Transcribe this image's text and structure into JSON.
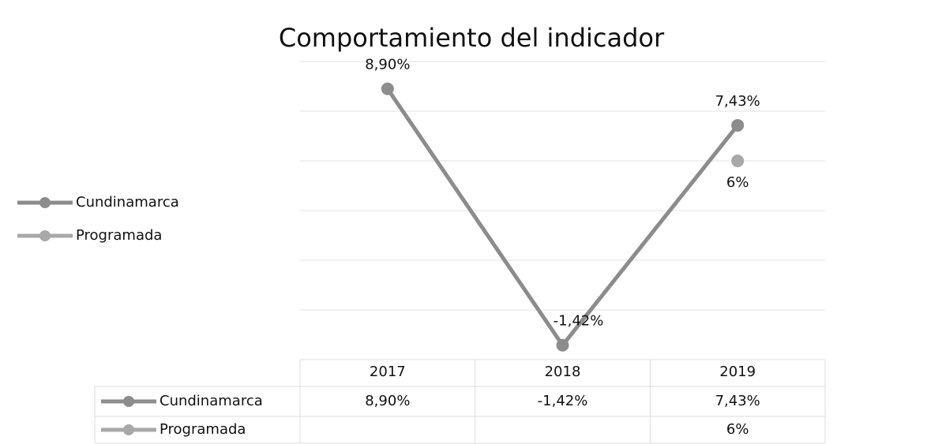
{
  "chart_data": {
    "type": "line",
    "title": "Comportamiento del indicador",
    "categories": [
      "2017",
      "2018",
      "2019"
    ],
    "series": [
      {
        "name": "Cundinamarca",
        "color": "#8c8c8c",
        "values": [
          8.9,
          -1.42,
          7.43
        ],
        "value_labels": [
          "8,90%",
          "-1,42%",
          "7,43%"
        ]
      },
      {
        "name": "Programada",
        "color": "#a8a8a8",
        "values": [
          null,
          null,
          6
        ],
        "value_labels": [
          null,
          null,
          "6%"
        ]
      }
    ],
    "ylim": [
      -2,
      10
    ],
    "yticks": [
      -2,
      0,
      2,
      4,
      6,
      8,
      10
    ],
    "grid": true,
    "legend": "left"
  }
}
